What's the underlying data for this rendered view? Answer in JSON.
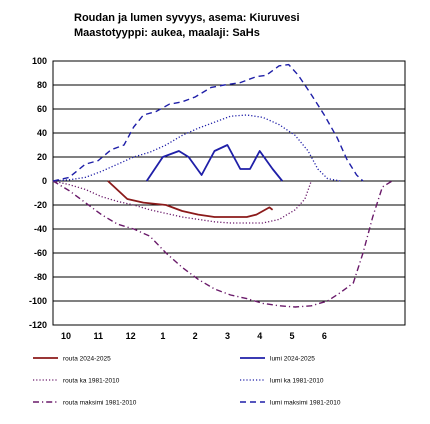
{
  "chart_data": {
    "type": "line",
    "title": "Roudan ja lumen syvyys, asema: Kiuruvesi",
    "subtitle": "Maastotyyppi: aukea, maalaji: SaHs",
    "xlabel": "",
    "ylabel": "",
    "x_ticks": [
      "10",
      "11",
      "12",
      "1",
      "2",
      "3",
      "4",
      "5",
      "6"
    ],
    "ylim": [
      -120,
      100
    ],
    "y_ticks": [
      100,
      80,
      60,
      40,
      20,
      0,
      -20,
      -40,
      -60,
      -80,
      -100,
      -120
    ],
    "grid": "horizontal",
    "legend_position": "bottom",
    "series": [
      {
        "name": "routa 2024-2025",
        "color": "#8b1a1a",
        "style": "solid",
        "points": [
          [
            11.7,
            0
          ],
          [
            12.3,
            -15
          ],
          [
            12.8,
            -18
          ],
          [
            13.5,
            -20
          ],
          [
            14.0,
            -25
          ],
          [
            14.5,
            -28
          ],
          [
            15.0,
            -30
          ],
          [
            15.5,
            -30
          ],
          [
            16.0,
            -30
          ],
          [
            16.3,
            -28
          ],
          [
            16.7,
            -22
          ],
          [
            16.8,
            -24
          ]
        ]
      },
      {
        "name": "lumi 2024-2025",
        "color": "#1f1fa8",
        "style": "solid",
        "points": [
          [
            12.9,
            0
          ],
          [
            13.4,
            20
          ],
          [
            13.9,
            25
          ],
          [
            14.2,
            20
          ],
          [
            14.6,
            5
          ],
          [
            15.0,
            25
          ],
          [
            15.4,
            30
          ],
          [
            15.8,
            10
          ],
          [
            16.1,
            10
          ],
          [
            16.4,
            25
          ],
          [
            16.8,
            10
          ],
          [
            17.1,
            0
          ]
        ]
      },
      {
        "name": "routa ka 1981-2010",
        "color": "#6a1a6a",
        "style": "dotted",
        "points": [
          [
            10.0,
            0
          ],
          [
            10.5,
            -3
          ],
          [
            11.0,
            -7
          ],
          [
            11.5,
            -13
          ],
          [
            12.0,
            -17
          ],
          [
            12.5,
            -20
          ],
          [
            13.0,
            -24
          ],
          [
            13.5,
            -27
          ],
          [
            14.0,
            -30
          ],
          [
            14.5,
            -32
          ],
          [
            15.0,
            -34
          ],
          [
            15.5,
            -35
          ],
          [
            16.0,
            -35
          ],
          [
            16.5,
            -35
          ],
          [
            17.0,
            -32
          ],
          [
            17.5,
            -24
          ],
          [
            17.8,
            -15
          ],
          [
            18.0,
            0
          ]
        ]
      },
      {
        "name": "lumi ka 1981-2010",
        "color": "#1f1fa8",
        "style": "dotted",
        "points": [
          [
            10.0,
            0
          ],
          [
            10.5,
            1
          ],
          [
            11.0,
            3
          ],
          [
            11.5,
            8
          ],
          [
            12.0,
            14
          ],
          [
            12.5,
            20
          ],
          [
            13.0,
            24
          ],
          [
            13.5,
            30
          ],
          [
            14.0,
            38
          ],
          [
            14.5,
            44
          ],
          [
            15.0,
            49
          ],
          [
            15.5,
            54
          ],
          [
            16.0,
            55
          ],
          [
            16.5,
            53
          ],
          [
            17.0,
            47
          ],
          [
            17.5,
            38
          ],
          [
            17.9,
            25
          ],
          [
            18.2,
            10
          ],
          [
            18.5,
            2
          ],
          [
            18.9,
            0
          ]
        ]
      },
      {
        "name": "routa maksimi 1981-2010",
        "color": "#6a1a6a",
        "style": "dashdot",
        "points": [
          [
            10.0,
            0
          ],
          [
            10.5,
            -8
          ],
          [
            11.0,
            -18
          ],
          [
            11.5,
            -28
          ],
          [
            12.0,
            -36
          ],
          [
            12.5,
            -40
          ],
          [
            13.0,
            -46
          ],
          [
            13.5,
            -60
          ],
          [
            14.0,
            -72
          ],
          [
            14.5,
            -82
          ],
          [
            15.0,
            -90
          ],
          [
            15.5,
            -95
          ],
          [
            16.0,
            -98
          ],
          [
            16.5,
            -102
          ],
          [
            17.0,
            -104
          ],
          [
            17.5,
            -105
          ],
          [
            18.0,
            -104
          ],
          [
            18.5,
            -100
          ],
          [
            18.9,
            -93
          ],
          [
            19.3,
            -85
          ],
          [
            19.6,
            -60
          ],
          [
            19.9,
            -30
          ],
          [
            20.2,
            -5
          ],
          [
            20.5,
            0
          ]
        ]
      },
      {
        "name": "lumi maksimi 1981-2010",
        "color": "#1f1fa8",
        "style": "dashed",
        "points": [
          [
            10.0,
            0
          ],
          [
            10.5,
            3
          ],
          [
            11.0,
            14
          ],
          [
            11.4,
            17
          ],
          [
            11.8,
            26
          ],
          [
            12.2,
            30
          ],
          [
            12.5,
            45
          ],
          [
            12.8,
            55
          ],
          [
            13.2,
            58
          ],
          [
            13.6,
            64
          ],
          [
            14.0,
            66
          ],
          [
            14.4,
            70
          ],
          [
            14.9,
            78
          ],
          [
            15.3,
            80
          ],
          [
            15.8,
            82
          ],
          [
            16.3,
            87
          ],
          [
            16.6,
            88
          ],
          [
            17.0,
            96
          ],
          [
            17.3,
            97
          ],
          [
            17.6,
            88
          ],
          [
            18.0,
            72
          ],
          [
            18.4,
            55
          ],
          [
            18.8,
            36
          ],
          [
            19.1,
            18
          ],
          [
            19.4,
            5
          ],
          [
            19.6,
            0
          ]
        ]
      }
    ]
  }
}
